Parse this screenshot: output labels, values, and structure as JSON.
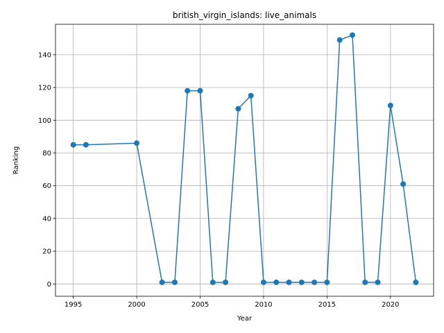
{
  "chart_data": {
    "type": "line",
    "title": "british_virgin_islands: live_animals",
    "xlabel": "Year",
    "ylabel": "Ranking",
    "xlim": [
      1993.6,
      2023.4
    ],
    "ylim": [
      -7.5,
      158.6
    ],
    "xticks": [
      1995,
      2000,
      2005,
      2010,
      2015,
      2020
    ],
    "yticks": [
      0,
      20,
      40,
      60,
      80,
      100,
      120,
      140
    ],
    "grid": true,
    "color": "#1f77b4",
    "series": [
      {
        "x": [
          1995,
          1996,
          2000,
          2002,
          2003,
          2004,
          2005,
          2006,
          2007,
          2008,
          2009,
          2010,
          2011,
          2012,
          2013,
          2014,
          2015,
          2016,
          2017,
          2018,
          2019,
          2020,
          2021,
          2022
        ],
        "y": [
          85,
          85,
          86,
          1,
          1,
          118,
          118,
          1,
          1,
          107,
          115,
          1,
          1,
          1,
          1,
          1,
          1,
          149,
          152,
          1,
          1,
          109,
          61,
          1
        ]
      }
    ]
  }
}
